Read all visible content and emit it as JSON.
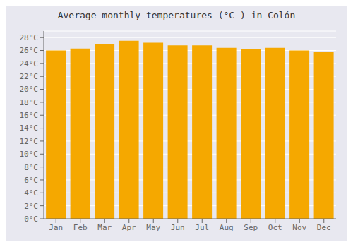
{
  "chart_data": {
    "type": "bar",
    "title": "Average monthly temperatures (°C ) in Colón",
    "categories": [
      "Jan",
      "Feb",
      "Mar",
      "Apr",
      "May",
      "Jun",
      "Jul",
      "Aug",
      "Sep",
      "Oct",
      "Nov",
      "Dec"
    ],
    "values": [
      26.0,
      26.3,
      27.0,
      27.5,
      27.2,
      26.8,
      26.8,
      26.4,
      26.2,
      26.4,
      26.0,
      25.8
    ],
    "color": "#F5A800",
    "ylim": [
      0,
      29
    ],
    "yticks": [
      {
        "value": 0,
        "label": "0°C"
      },
      {
        "value": 2,
        "label": "2°C"
      },
      {
        "value": 4,
        "label": "4°C"
      },
      {
        "value": 6,
        "label": "6°C"
      },
      {
        "value": 8,
        "label": "8°C"
      },
      {
        "value": 10,
        "label": "10°C"
      },
      {
        "value": 12,
        "label": "12°C"
      },
      {
        "value": 14,
        "label": "14°C"
      },
      {
        "value": 16,
        "label": "16°C"
      },
      {
        "value": 18,
        "label": "18°C"
      },
      {
        "value": 20,
        "label": "20°C"
      },
      {
        "value": 22,
        "label": "22°C"
      },
      {
        "value": 24,
        "label": "24°C"
      },
      {
        "value": 26,
        "label": "26°C"
      },
      {
        "value": 28,
        "label": "28°C"
      }
    ],
    "grid": true
  }
}
